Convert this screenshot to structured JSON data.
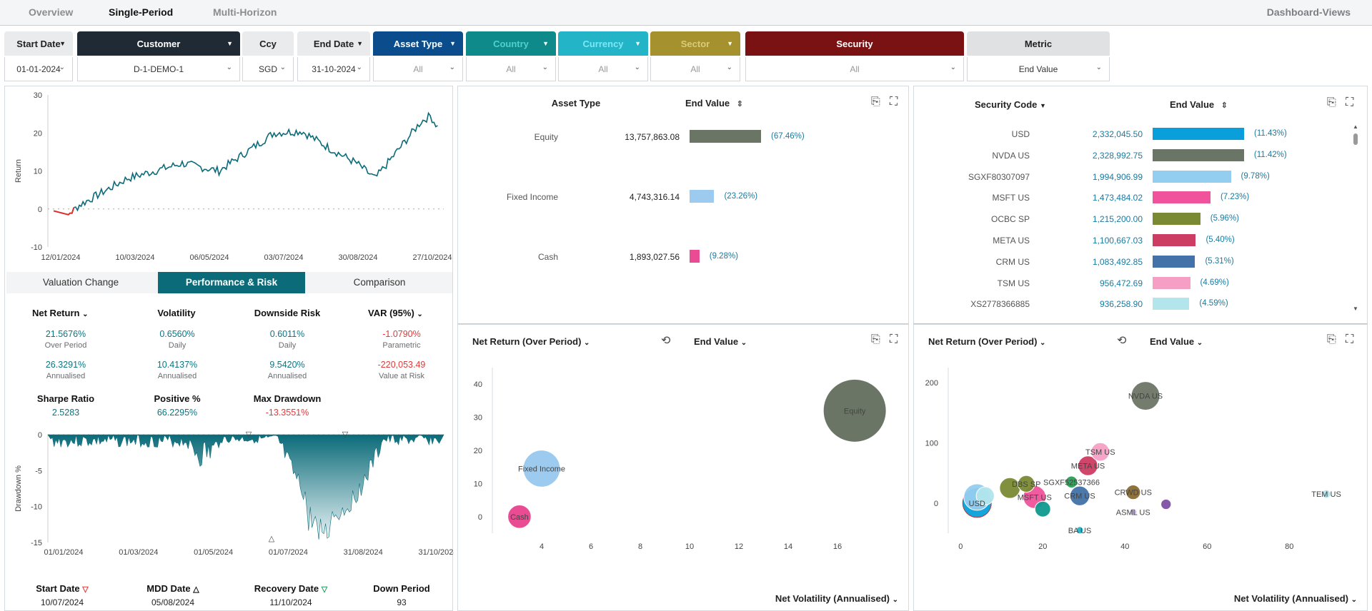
{
  "nav": {
    "tabs": [
      "Overview",
      "Single-Period",
      "Multi-Horizon"
    ],
    "right": "Dashboard-Views"
  },
  "filters": [
    {
      "label": "Start Date",
      "value": "01-01-2024",
      "bg": "#e9ebed",
      "color": "#222",
      "muted": false
    },
    {
      "label": "Customer",
      "value": "D-1-DEMO-1",
      "bg": "#1f2a35",
      "color": "#ffffff",
      "muted": false
    },
    {
      "label": "Ccy",
      "value": "SGD",
      "bg": "#e9ebed",
      "color": "#222",
      "muted": false
    },
    {
      "label": "End Date",
      "value": "31-10-2024",
      "bg": "#e9ebed",
      "color": "#222",
      "muted": false
    },
    {
      "label": "Asset Type",
      "value": "All",
      "bg": "#0b4d8c",
      "color": "#ffffff",
      "muted": true
    },
    {
      "label": "Country",
      "value": "All",
      "bg": "#0f8a8a",
      "color": "#4fd0d0",
      "muted": true
    },
    {
      "label": "Currency",
      "value": "All",
      "bg": "#23b5c7",
      "color": "#7ee7f3",
      "muted": true
    },
    {
      "label": "Sector",
      "value": "All",
      "bg": "#a6912f",
      "color": "#d9cb7a",
      "muted": true
    },
    {
      "label": "Security",
      "value": "All",
      "bg": "#7a1214",
      "color": "#ffffff",
      "muted": true
    },
    {
      "label": "Metric",
      "value": "End Value",
      "bg": "#dfe1e3",
      "color": "#222",
      "muted": false
    }
  ],
  "perf": {
    "y_ticks": [
      "30",
      "20",
      "10",
      "0",
      "-10"
    ],
    "x_ticks": [
      "12/01/2024",
      "10/03/2024",
      "06/05/2024",
      "03/07/2024",
      "30/08/2024",
      "27/10/2024"
    ],
    "ylabel": "Return"
  },
  "subtabs": [
    "Valuation Change",
    "Performance & Risk",
    "Comparison"
  ],
  "metrics": {
    "net_return": {
      "label": "Net Return",
      "v1": "21.5676%",
      "s1": "Over Period",
      "v2": "26.3291%",
      "s2": "Annualised"
    },
    "volatility": {
      "label": "Volatility",
      "v1": "0.6560%",
      "s1": "Daily",
      "v2": "10.4137%",
      "s2": "Annualised"
    },
    "downside": {
      "label": "Downside Risk",
      "v1": "0.6011%",
      "s1": "Daily",
      "v2": "9.5420%",
      "s2": "Annualised"
    },
    "var": {
      "label": "VAR (95%)",
      "v1": "-1.0790%",
      "s1": "Parametric",
      "v2": "-220,053.49",
      "s2": "Value at Risk"
    },
    "sharpe": {
      "label": "Sharpe Ratio",
      "v": "2.5283"
    },
    "positive": {
      "label": "Positive %",
      "v": "66.2295%"
    },
    "mdd": {
      "label": "Max Drawdown",
      "v": "-13.3551%"
    }
  },
  "drawdown": {
    "y_ticks": [
      "0",
      "-5",
      "-10",
      "-15"
    ],
    "x_ticks": [
      "01/01/2024",
      "01/03/2024",
      "01/05/2024",
      "01/07/2024",
      "31/08/2024",
      "31/10/2024"
    ],
    "ylabel": "Drawdown %"
  },
  "dd_table": {
    "headers": [
      "Start Date",
      "MDD Date",
      "Recovery Date",
      "Down Period"
    ],
    "values": [
      "10/07/2024",
      "05/08/2024",
      "11/10/2024",
      "93"
    ]
  },
  "asset_table": {
    "col1": "Asset Type",
    "col2": "End Value",
    "rows": [
      {
        "name": "Equity",
        "value": "13,757,863.08",
        "pct": "(67.46%)",
        "share": 67.46,
        "color": "#6b7565"
      },
      {
        "name": "Fixed Income",
        "value": "4,743,316.14",
        "pct": "(23.26%)",
        "share": 23.26,
        "color": "#9ccbef"
      },
      {
        "name": "Cash",
        "value": "1,893,027.56",
        "pct": "(9.28%)",
        "share": 9.28,
        "color": "#e94c93"
      }
    ]
  },
  "security_table": {
    "col1": "Security Code",
    "col2": "End Value",
    "rows": [
      {
        "name": "USD",
        "value": "2,332,045.50",
        "pct": "(11.43%)",
        "share": 11.43,
        "color": "#0a9fda"
      },
      {
        "name": "NVDA US",
        "value": "2,328,992.75",
        "pct": "(11.42%)",
        "share": 11.42,
        "color": "#6b7565"
      },
      {
        "name": "SGXF80307097",
        "value": "1,994,906.99",
        "pct": "(9.78%)",
        "share": 9.78,
        "color": "#93cdef"
      },
      {
        "name": "MSFT US",
        "value": "1,473,484.02",
        "pct": "(7.23%)",
        "share": 7.23,
        "color": "#f0529b"
      },
      {
        "name": "OCBC SP",
        "value": "1,215,200.00",
        "pct": "(5.96%)",
        "share": 5.96,
        "color": "#7a8a34"
      },
      {
        "name": "META US",
        "value": "1,100,667.03",
        "pct": "(5.40%)",
        "share": 5.4,
        "color": "#cd3c63"
      },
      {
        "name": "CRM US",
        "value": "1,083,492.85",
        "pct": "(5.31%)",
        "share": 5.31,
        "color": "#4272a8"
      },
      {
        "name": "TSM US",
        "value": "956,472.69",
        "pct": "(4.69%)",
        "share": 4.69,
        "color": "#f59fc4"
      },
      {
        "name": "XS2778366885",
        "value": "936,258.90",
        "pct": "(4.59%)",
        "share": 4.59,
        "color": "#b2e5ec"
      }
    ]
  },
  "scatter_controls": {
    "y": "Net Return (Over Period)",
    "size": "End Value",
    "x": "Net Volatility (Annualised)"
  },
  "chart_data": [
    {
      "type": "line",
      "title": "",
      "ylabel": "Return",
      "xlabel": "",
      "ylim": [
        -10,
        30
      ],
      "x": [
        "01/01/2024",
        "12/01/2024",
        "10/03/2024",
        "06/05/2024",
        "03/07/2024",
        "30/08/2024",
        "27/10/2024",
        "31/10/2024"
      ],
      "values": [
        -0.5,
        -1,
        7,
        12,
        21,
        12,
        24,
        21.6
      ]
    },
    {
      "type": "area",
      "title": "",
      "ylabel": "Drawdown %",
      "xlabel": "",
      "ylim": [
        -15,
        0
      ],
      "x": [
        "01/01/2024",
        "01/03/2024",
        "01/05/2024",
        "01/07/2024",
        "05/08/2024",
        "31/08/2024",
        "11/10/2024",
        "31/10/2024"
      ],
      "values": [
        0,
        -1,
        -3,
        -1,
        -13.36,
        -8,
        0,
        -1
      ]
    },
    {
      "type": "scatter",
      "title": "",
      "xlabel": "Net Volatility (Annualised)",
      "ylabel": "Net Return (Over Period)",
      "xlim": [
        2,
        18
      ],
      "ylim": [
        -5,
        45
      ],
      "points": [
        {
          "name": "Equity",
          "x": 16.7,
          "y": 32,
          "size": 13757863,
          "color": "#6b7565"
        },
        {
          "name": "Fixed Income",
          "x": 4,
          "y": 14.5,
          "size": 4743316,
          "color": "#9ccbef"
        },
        {
          "name": "Cash",
          "x": 3.1,
          "y": 0,
          "size": 1893027,
          "color": "#e94c93"
        }
      ]
    },
    {
      "type": "scatter",
      "title": "",
      "xlabel": "Net Volatility (Annualised)",
      "ylabel": "Net Return (Over Period)",
      "xlim": [
        -3,
        93
      ],
      "ylim": [
        -50,
        225
      ],
      "points": [
        {
          "name": "NVDA US",
          "x": 45,
          "y": 178,
          "size": 2328992,
          "color": "#6b7565"
        },
        {
          "name": "TSM US",
          "x": 34,
          "y": 85,
          "size": 956472,
          "color": "#f59fc4"
        },
        {
          "name": "META US",
          "x": 31,
          "y": 62,
          "size": 1100667,
          "color": "#cd3c63"
        },
        {
          "name": "SGXF52537366",
          "x": 27,
          "y": 35,
          "size": 400000,
          "color": "#2a9d55"
        },
        {
          "name": "DBS SP",
          "x": 16,
          "y": 32,
          "size": 800000,
          "color": "#7a8a34"
        },
        {
          "name": "MSFT US",
          "x": 18,
          "y": 10,
          "size": 1473484,
          "color": "#f0529b"
        },
        {
          "name": "CRM US",
          "x": 29,
          "y": 12,
          "size": 1083492,
          "color": "#4272a8"
        },
        {
          "name": "CRWD US",
          "x": 42,
          "y": 18,
          "size": 600000,
          "color": "#8a6a30"
        },
        {
          "name": "ASML US",
          "x": 42,
          "y": -15,
          "size": 100000,
          "color": "#c6b6e8"
        },
        {
          "name": "BA US",
          "x": 29,
          "y": -45,
          "size": 100000,
          "color": "#23b5c7"
        },
        {
          "name": "USD",
          "x": 4,
          "y": 0,
          "size": 2332045,
          "color": "#0a9fda"
        },
        {
          "name": "TEM US",
          "x": 89,
          "y": 15,
          "size": 200000,
          "color": "#b2e5ec"
        },
        {
          "name": "OCBC SP",
          "x": 12,
          "y": 25,
          "size": 1215200,
          "color": "#7a8a34"
        },
        {
          "name": "SGXF80307097",
          "x": 4,
          "y": 10,
          "size": 1994906,
          "color": "#93cdef"
        },
        {
          "name": "XS2778366885",
          "x": 6,
          "y": 12,
          "size": 936258,
          "color": "#b2e5ec"
        },
        {
          "name": "",
          "x": 50,
          "y": -2,
          "size": 300000,
          "color": "#7e4fa3"
        },
        {
          "name": "",
          "x": 20,
          "y": -10,
          "size": 700000,
          "color": "#0f9a8f"
        }
      ]
    }
  ]
}
